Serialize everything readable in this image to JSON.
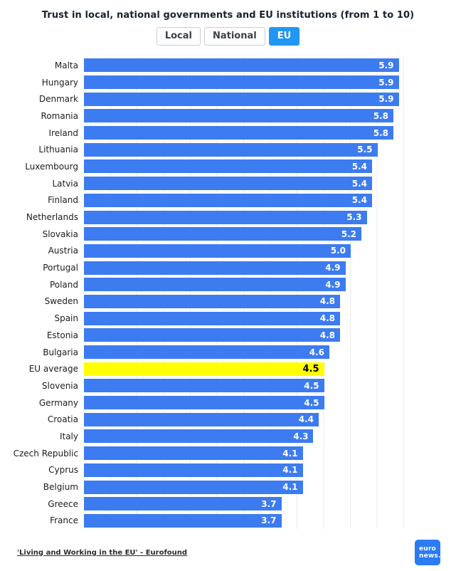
{
  "title": "Trust in local, national governments and EU institutions (from 1 to 10)",
  "tabs": [
    {
      "label": "Local",
      "active": false
    },
    {
      "label": "National",
      "active": false
    },
    {
      "label": "EU",
      "active": true
    }
  ],
  "tab_active_color": "#2196f3",
  "chart_data": {
    "type": "bar",
    "orientation": "horizontal",
    "title": "Trust in local, national governments and EU institutions (from 1 to 10)",
    "xlabel": "",
    "ylabel": "",
    "xlim": [
      0,
      6
    ],
    "grid": true,
    "bar_color": "#3d7bf0",
    "highlight_color": "#ffff00",
    "highlight_category": "EU average",
    "categories": [
      "Malta",
      "Hungary",
      "Denmark",
      "Romania",
      "Ireland",
      "Lithuania",
      "Luxembourg",
      "Latvia",
      "Finland",
      "Netherlands",
      "Slovakia",
      "Austria",
      "Portugal",
      "Poland",
      "Sweden",
      "Spain",
      "Estonia",
      "Bulgaria",
      "EU average",
      "Slovenia",
      "Germany",
      "Croatia",
      "Italy",
      "Czech Republic",
      "Cyprus",
      "Belgium",
      "Greece",
      "France"
    ],
    "values": [
      5.9,
      5.9,
      5.9,
      5.8,
      5.8,
      5.5,
      5.4,
      5.4,
      5.4,
      5.3,
      5.2,
      5.0,
      4.9,
      4.9,
      4.8,
      4.8,
      4.8,
      4.6,
      4.5,
      4.5,
      4.5,
      4.4,
      4.3,
      4.1,
      4.1,
      4.1,
      3.7,
      3.7
    ]
  },
  "footer": {
    "source": "'Living and Working in the EU' - Eurofound",
    "logo": {
      "line1": "euro",
      "line2": "news.",
      "color": "#2b7bf3"
    }
  }
}
